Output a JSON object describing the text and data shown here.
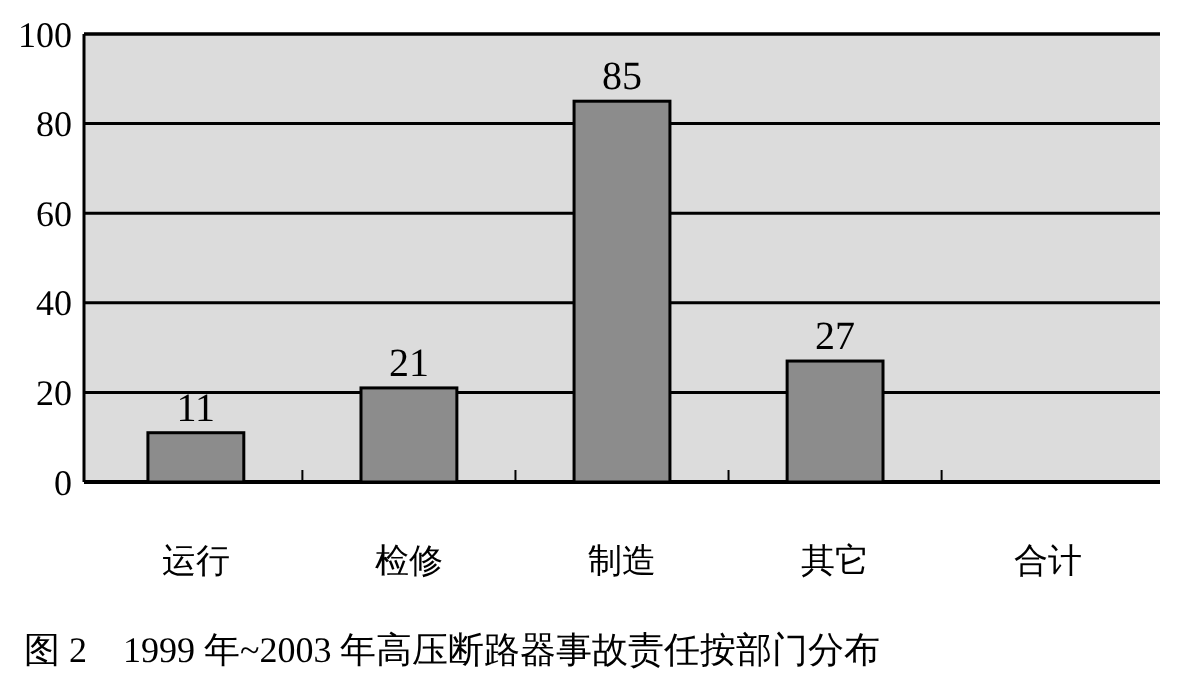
{
  "chart_data": {
    "type": "bar",
    "title": "图 2　1999 年~2003 年高压断路器事故责任按部门分布",
    "categories": [
      "运行",
      "检修",
      "制造",
      "其它",
      "合计"
    ],
    "values": [
      11,
      21,
      85,
      27,
      null
    ],
    "color": "#8c8c8c",
    "ylim": [
      0,
      100
    ],
    "yticks": [
      0,
      20,
      40,
      60,
      80,
      100
    ],
    "grid": "y",
    "data_labels": true
  }
}
